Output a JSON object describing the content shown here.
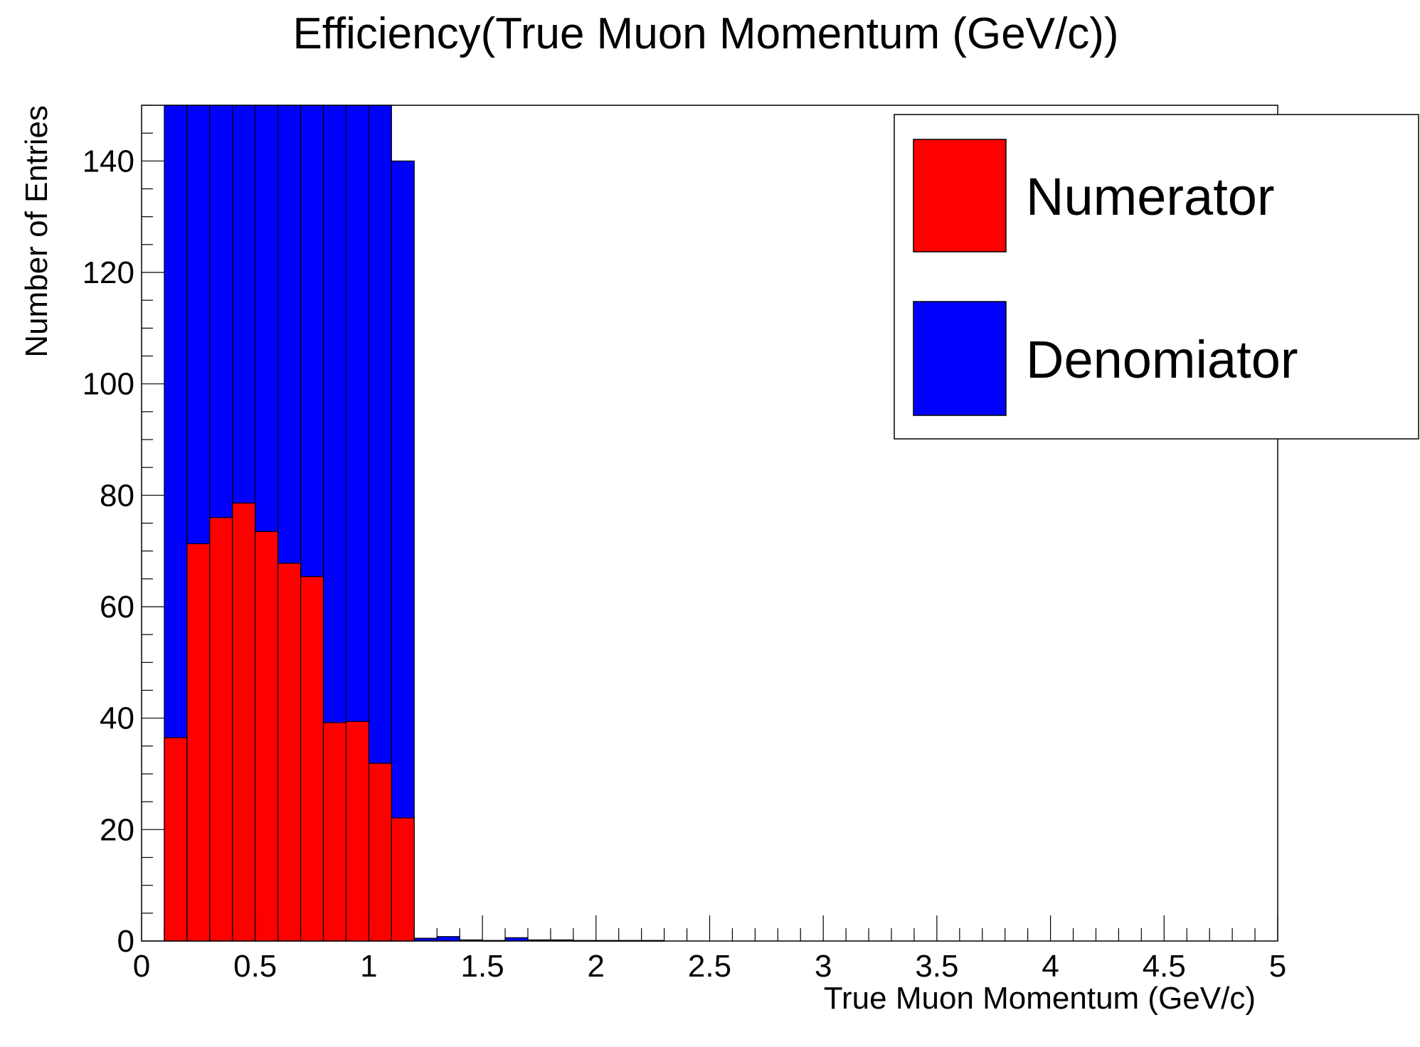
{
  "chart_data": {
    "type": "bar",
    "title": "Efficiency(True Muon Momentum (GeV/c))",
    "xlabel": "True Muon Momentum (GeV/c)",
    "ylabel": "Number of Entries",
    "xlim": [
      0,
      5
    ],
    "ylim": [
      0,
      150
    ],
    "x_ticks": [
      "0",
      "0.5",
      "1",
      "1.5",
      "2",
      "2.5",
      "3",
      "3.5",
      "4",
      "4.5",
      "5"
    ],
    "y_ticks": [
      "0",
      "20",
      "40",
      "60",
      "80",
      "100",
      "120",
      "140"
    ],
    "bin_width": 0.1,
    "x_bin_starts": [
      0.1,
      0.2,
      0.3,
      0.4,
      0.5,
      0.6,
      0.7,
      0.8,
      0.9,
      1.0,
      1.1,
      1.2,
      1.3,
      1.4,
      1.5,
      1.6,
      1.7,
      1.8,
      1.9,
      2.0,
      2.1,
      2.2
    ],
    "series": [
      {
        "name": "Denomiator",
        "color": "#0000ff",
        "values": [
          150,
          150,
          150,
          150,
          150,
          150,
          150,
          150,
          150,
          150,
          140,
          0.5,
          0.8,
          0.2,
          0.1,
          0.6,
          0.2,
          0.2,
          0.1,
          0.1,
          0.1,
          0.1
        ]
      },
      {
        "name": "Numerator",
        "color": "#ff0000",
        "values": [
          36.5,
          71.3,
          76,
          78.6,
          73.5,
          67.8,
          65.4,
          39.2,
          39.4,
          31.9,
          22.1,
          0,
          0,
          0,
          0,
          0,
          0,
          0,
          0,
          0,
          0,
          0
        ]
      }
    ],
    "legend": {
      "placement": "top-right",
      "entries": [
        {
          "label": "Numerator",
          "color": "#ff0000"
        },
        {
          "label": "Denomiator",
          "color": "#0000ff"
        }
      ]
    },
    "grid": false
  }
}
